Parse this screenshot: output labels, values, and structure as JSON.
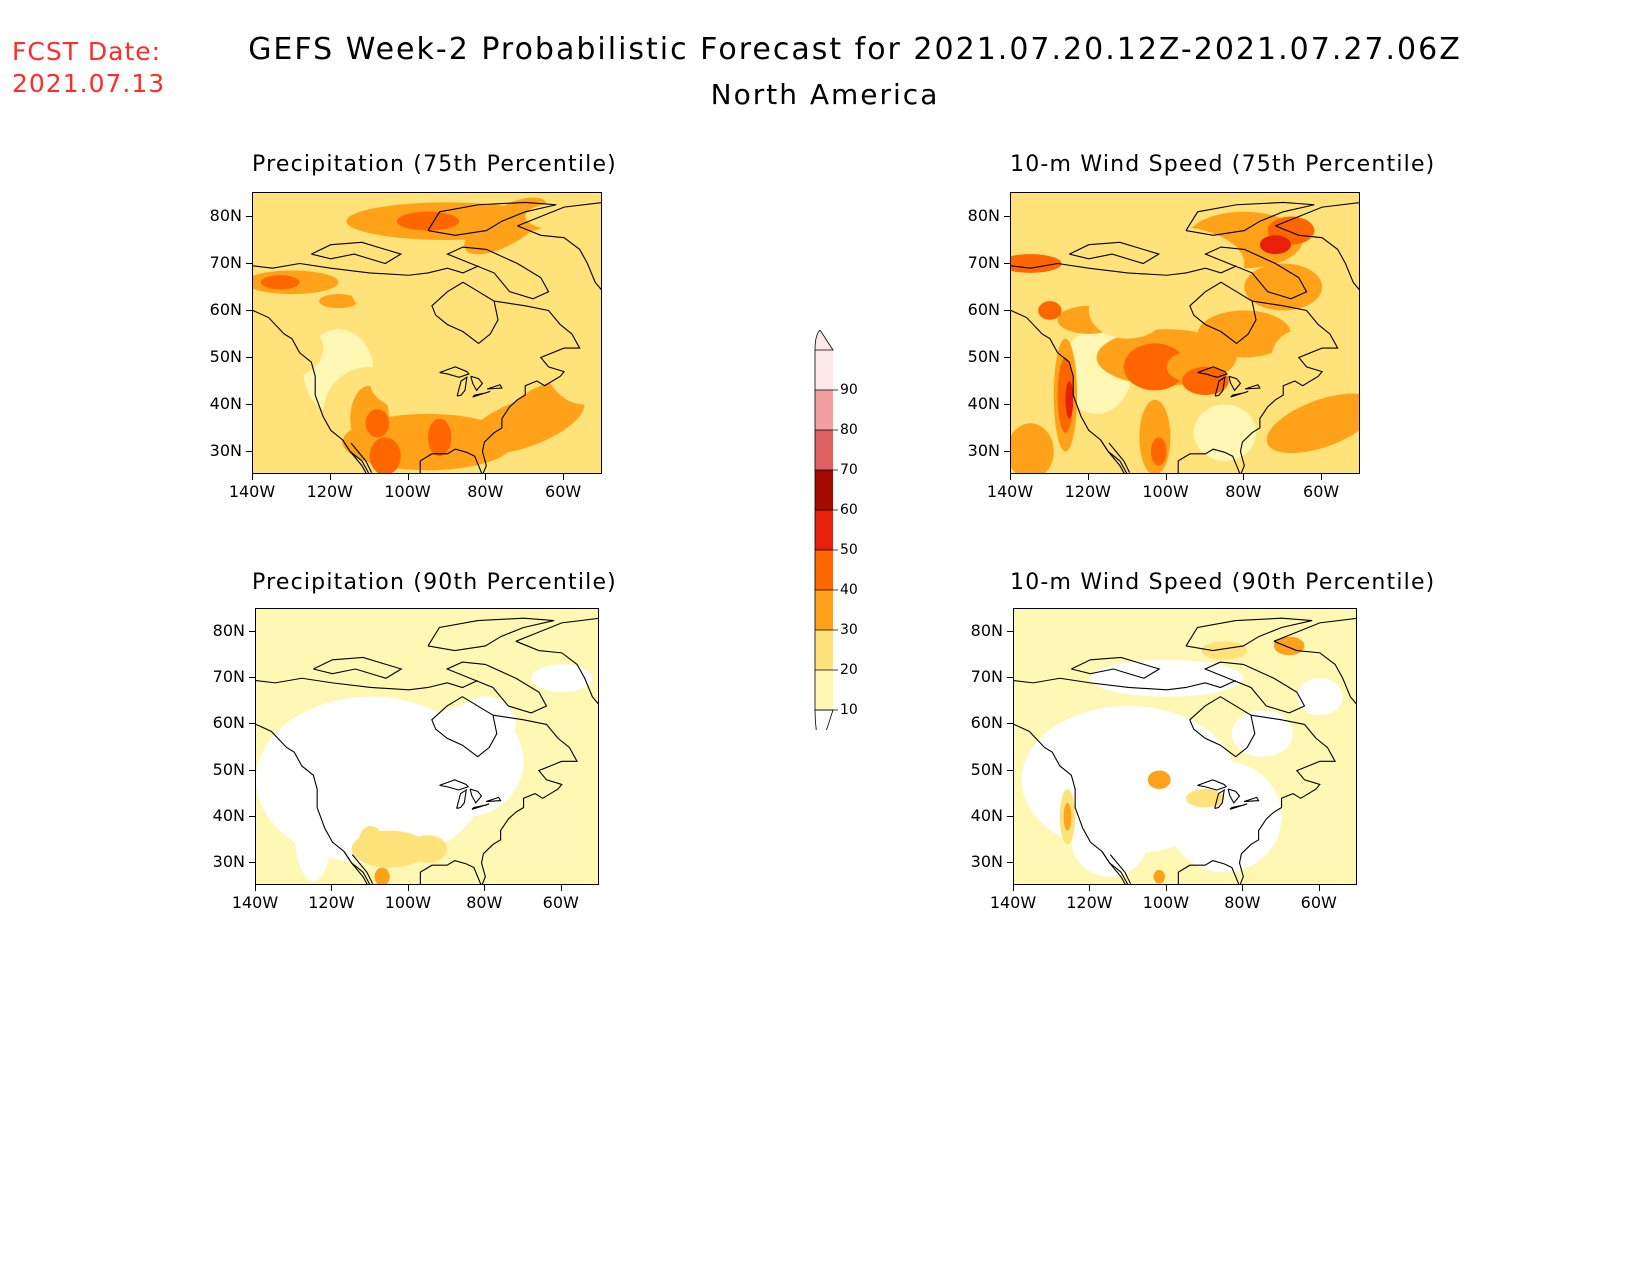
{
  "fcst_date": {
    "line1": "FCST Date:",
    "line2": "2021.07.13"
  },
  "title": {
    "line1": "GEFS Week-2 Probabilistic Forecast for 2021.07.20.12Z-2021.07.27.06Z",
    "line2": "North America"
  },
  "panels": [
    {
      "id": "precip75",
      "title": "Precipitation (75th Percentile)"
    },
    {
      "id": "wind75",
      "title": "10-m Wind Speed (75th Percentile)"
    },
    {
      "id": "precip90",
      "title": "Precipitation (90th Percentile)"
    },
    {
      "id": "wind90",
      "title": "10-m Wind Speed (90th Percentile)"
    }
  ],
  "axes": {
    "lat_labels": [
      "80N",
      "70N",
      "60N",
      "50N",
      "40N",
      "30N"
    ],
    "lon_labels": [
      "140W",
      "120W",
      "100W",
      "80W",
      "60W"
    ]
  },
  "colorbar": {
    "levels": [
      "10",
      "20",
      "30",
      "40",
      "50",
      "60",
      "70",
      "80",
      "90"
    ],
    "colors": [
      "#fff8b4",
      "#ffe27a",
      "#ffa21a",
      "#ff6600",
      "#e8200a",
      "#a50a00",
      "#de6060",
      "#f2a0a0",
      "#fde8e8"
    ]
  }
}
